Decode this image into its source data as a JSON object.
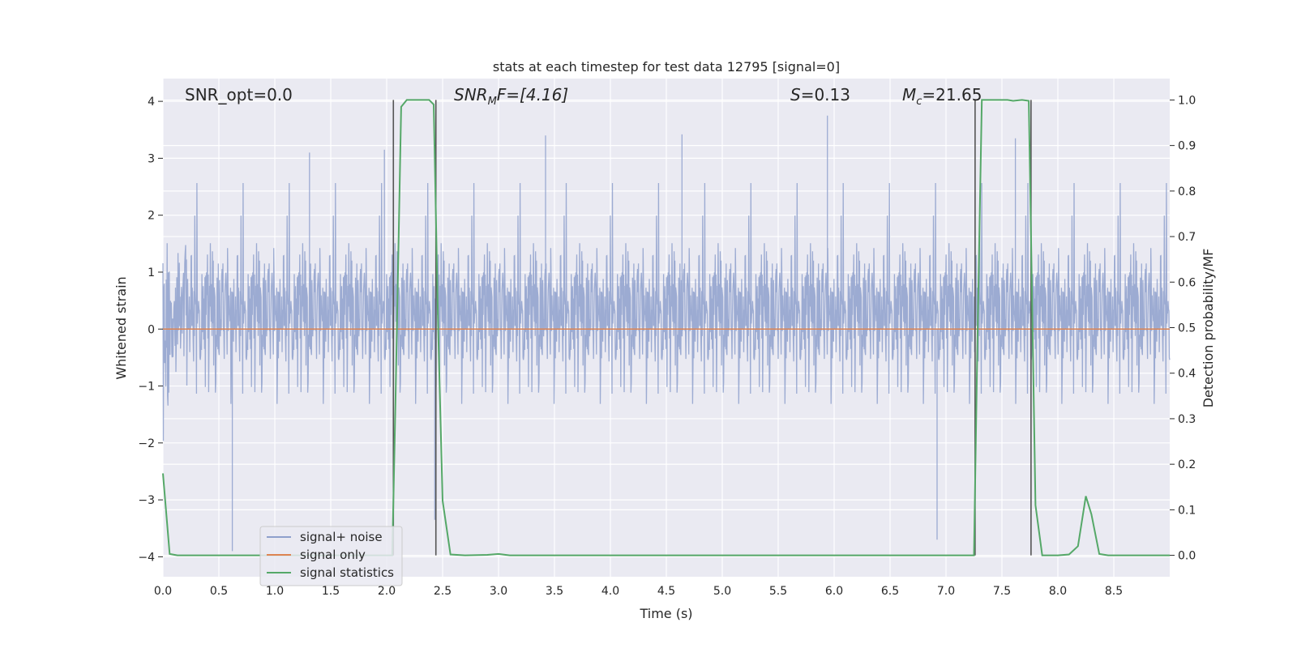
{
  "chart_data": {
    "type": "line",
    "title": "stats at each timestep for test data 12795 [signal=0]",
    "xlabel": "Time (s)",
    "ylabel": "Whitened strain",
    "ylabel_right": "Detection probability/MF",
    "xlim": [
      0,
      9.0
    ],
    "ylim": [
      -4.35,
      4.4
    ],
    "ylim_right": [
      -0.047,
      1.047
    ],
    "x_ticks": [
      0.0,
      0.5,
      1.0,
      1.5,
      2.0,
      2.5,
      3.0,
      3.5,
      4.0,
      4.5,
      5.0,
      5.5,
      6.0,
      6.5,
      7.0,
      7.5,
      8.0,
      8.5
    ],
    "x_tick_labels": [
      "0.0",
      "0.5",
      "1.0",
      "1.5",
      "2.0",
      "2.5",
      "3.0",
      "3.5",
      "4.0",
      "4.5",
      "5.0",
      "5.5",
      "6.0",
      "6.5",
      "7.0",
      "7.5",
      "8.0",
      "8.5"
    ],
    "y_ticks": [
      4,
      3,
      2,
      1,
      0,
      -1,
      -2,
      -3,
      -4
    ],
    "y_tick_labels": [
      "4",
      "3",
      "2",
      "1",
      "0",
      "−1",
      "−2",
      "−3",
      "−4"
    ],
    "y_right_ticks": [
      1.0,
      0.9,
      0.8,
      0.7,
      0.6,
      0.5,
      0.4,
      0.3,
      0.2,
      0.1,
      0.0
    ],
    "y_right_tick_labels": [
      "1.0",
      "0.9",
      "0.8",
      "0.7",
      "0.6",
      "0.5",
      "0.4",
      "0.3",
      "0.2",
      "0.1",
      "0.0"
    ],
    "grid": true,
    "legend_position": "lower-left",
    "annotations": {
      "snr_opt": "SNR_opt=0.0",
      "snr_mf_main": "SNR",
      "snr_mf_sub": "M",
      "snr_mf_rest": "F=[4.16]",
      "s_main": "S",
      "s_rest": "=0.13",
      "mc_main": "M",
      "mc_sub": "c",
      "mc_rest": "=21.65"
    },
    "detection_markers": [
      {
        "start": 2.06,
        "end": 2.44
      },
      {
        "start": 7.26,
        "end": 7.76
      }
    ],
    "series": [
      {
        "name": "signal+ noise",
        "color": "#8ea0cc",
        "kind": "noise",
        "envelope_note": "dense whitened strain noise, peaks mostly within ±3.5, extremes near 3.8 and −3.9",
        "x": [
          0.62,
          1.31,
          1.98,
          2.43,
          3.42,
          4.64,
          5.94,
          7.62,
          6.92
        ],
        "y": [
          -3.9,
          3.1,
          3.15,
          -3.35,
          3.4,
          3.42,
          3.75,
          3.35,
          -3.7
        ]
      },
      {
        "name": "signal only",
        "color": "#dd8452",
        "x": [
          0,
          9.0
        ],
        "y": [
          0,
          0
        ]
      },
      {
        "name": "signal statistics",
        "color": "#55a868",
        "axis": "right",
        "x": [
          0.0,
          0.06,
          0.13,
          0.2,
          2.05,
          2.08,
          2.13,
          2.18,
          2.3,
          2.38,
          2.42,
          2.46,
          2.5,
          2.57,
          2.7,
          2.9,
          3.0,
          3.1,
          3.5,
          7.25,
          7.28,
          7.32,
          7.45,
          7.55,
          7.6,
          7.68,
          7.74,
          7.77,
          7.8,
          7.86,
          7.9,
          8.0,
          8.1,
          8.18,
          8.25,
          8.3,
          8.37,
          8.45,
          8.6,
          9.0
        ],
        "y": [
          0.18,
          0.003,
          0.0,
          0.0,
          0.0,
          0.35,
          0.985,
          1.0,
          1.0,
          1.0,
          0.99,
          0.5,
          0.12,
          0.002,
          0.0,
          0.001,
          0.003,
          0.0,
          0.0,
          0.0,
          0.45,
          1.0,
          1.0,
          1.0,
          0.998,
          1.0,
          0.998,
          0.55,
          0.11,
          0.0,
          0.0,
          0.0,
          0.002,
          0.02,
          0.13,
          0.09,
          0.003,
          0.0,
          0.0,
          0.0
        ]
      }
    ]
  }
}
